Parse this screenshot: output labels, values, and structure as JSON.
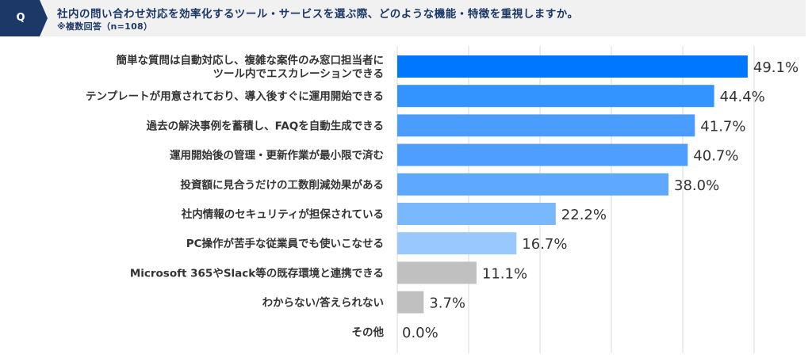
{
  "header": {
    "badge": "Q",
    "title": "社内の問い合わせ対応を効率化するツール・サービスを選ぶ際、どのような機能・特徴を重視しますか。",
    "subtitle": "※複数回答（n=108）"
  },
  "chart_data": {
    "type": "bar",
    "orientation": "horizontal",
    "title": "社内の問い合わせ対応を効率化するツール・サービスを選ぶ際、どのような機能・特徴を重視しますか。",
    "subtitle": "※複数回答（n=108）",
    "xlim": [
      0,
      50
    ],
    "grid": true,
    "categories": [
      [
        "簡単な質問は自動対応し、複雑な案件のみ窓口担当者に",
        "ツール内でエスカレーションできる"
      ],
      [
        "テンプレートが用意されており、導入後すぐに運用開始できる"
      ],
      [
        "過去の解決事例を蓄積し、FAQを自動生成できる"
      ],
      [
        "運用開始後の管理・更新作業が最小限で済む"
      ],
      [
        "投資額に見合うだけの工数削減効果がある"
      ],
      [
        "社内情報のセキュリティが担保されている"
      ],
      [
        "PC操作が苦手な従業員でも使いこなせる"
      ],
      [
        "Microsoft 365やSlack等の既存環境と連携できる"
      ],
      [
        "わからない/答えられない"
      ],
      [
        "その他"
      ]
    ],
    "values": [
      49.1,
      44.4,
      41.7,
      40.7,
      38.0,
      22.2,
      16.7,
      11.1,
      3.7,
      0.0
    ],
    "value_labels": [
      "49.1%",
      "44.4%",
      "41.7%",
      "40.7%",
      "38.0%",
      "22.2%",
      "16.7%",
      "11.1%",
      "3.7%",
      "0.0%"
    ],
    "colors": [
      "#0077ff",
      "#3393ff",
      "#4a9cff",
      "#4d9eff",
      "#5ea8ff",
      "#7ab8fd",
      "#98c8fd",
      "#c0c0c0",
      "#c0c0c0",
      "#c0c0c0"
    ]
  },
  "style": {
    "header_badge_color": "#1b3866",
    "gridline_color": "#d9d9d9"
  }
}
